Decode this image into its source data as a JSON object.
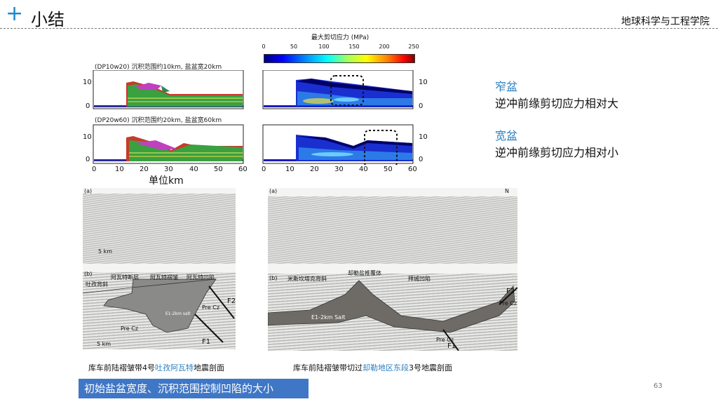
{
  "header": {
    "plus": "+",
    "title": "小结",
    "school": "地球科学与工程学院"
  },
  "colorbar": {
    "title": "最大剪切应力 (MPa)",
    "ticks": [
      "0",
      "50",
      "100",
      "150",
      "200",
      "250"
    ]
  },
  "models": {
    "top_caption": "(DP10w20) 沉积范围约10km, 盐盆宽20km",
    "bottom_caption": "(DP20w60) 沉积范围约20km, 盐盆宽60km",
    "y_ticks": [
      "10",
      "0"
    ],
    "x_ticks": [
      "0",
      "10",
      "20",
      "30",
      "40",
      "50",
      "60"
    ],
    "unit": "单位km"
  },
  "notes": {
    "narrow_head": "窄盆",
    "narrow_text": "逆冲前缘剪切应力相对大",
    "wide_head": "宽盆",
    "wide_text": "逆冲前缘剪切应力相对小"
  },
  "sections": {
    "left_a": "(a)",
    "left_b": "(b)",
    "left_scale": "5 km",
    "left_labels": [
      "阿瓦特断层",
      "阿瓦特褶皱",
      "阿瓦特凹陷",
      "吐孜背斜",
      "E1-2km salt",
      "Pre Cz",
      "Pre Cz",
      "F2",
      "F1",
      "5 km"
    ],
    "right_a": "(a)",
    "right_b": "(b)",
    "right_labels": [
      "米斯坎塔克背斜",
      "却勒盐推覆体",
      "拜城凹陷",
      "E1-2km Salt",
      "Pre Cz",
      "Pre Cz",
      "F2",
      "F1",
      "N"
    ],
    "left_caption_pre": "库车前陆褶皱带4号",
    "left_caption_hl": "吐孜阿瓦特",
    "left_caption_post": "地震剖面",
    "right_caption_pre": "库车前陆褶皱带切过",
    "right_caption_hl": "却勒地区东段",
    "right_caption_post": "3号地震剖面"
  },
  "footer": {
    "banner": "初始盐盆宽度、沉积范围控制凹陷的大小",
    "page": "63"
  }
}
